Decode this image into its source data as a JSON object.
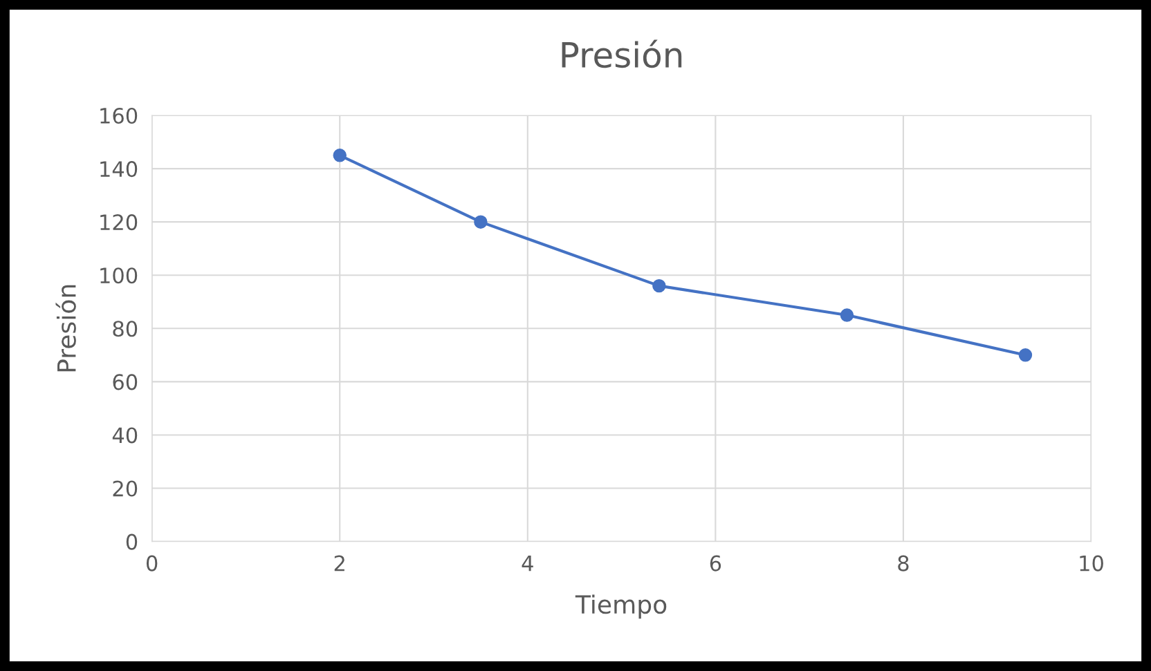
{
  "chart_data": {
    "type": "line",
    "title": "Presión",
    "xlabel": "Tiempo",
    "ylabel": "Presión",
    "x": [
      2,
      3.5,
      5.4,
      7.4,
      9.3
    ],
    "series": [
      {
        "color": "#4472c4",
        "values": [
          145,
          120,
          96,
          85,
          70
        ]
      }
    ],
    "xlim": [
      0,
      10
    ],
    "xticks": [
      0,
      2,
      4,
      6,
      8,
      10
    ],
    "ylim": [
      0,
      160
    ],
    "yticks": [
      0,
      20,
      40,
      60,
      80,
      100,
      120,
      140,
      160
    ],
    "grid": true,
    "marker": "circle",
    "line_style": "solid",
    "legend": false
  }
}
